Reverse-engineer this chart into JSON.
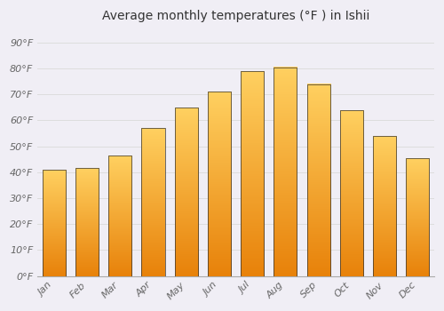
{
  "title": "Average monthly temperatures (°F ) in Ishii",
  "months": [
    "Jan",
    "Feb",
    "Mar",
    "Apr",
    "May",
    "Jun",
    "Jul",
    "Aug",
    "Sep",
    "Oct",
    "Nov",
    "Dec"
  ],
  "values": [
    41,
    41.5,
    46.5,
    57,
    65,
    71,
    79,
    80.5,
    74,
    64,
    54,
    45.5
  ],
  "bar_color_bottom": "#E8820A",
  "bar_color_top": "#FFD060",
  "bar_edge_color": "#333333",
  "background_color": "#F0EEF5",
  "plot_bg_color": "#F0EEF5",
  "grid_color": "#DDDDDD",
  "yticks": [
    0,
    10,
    20,
    30,
    40,
    50,
    60,
    70,
    80,
    90
  ],
  "ylim": [
    0,
    95
  ],
  "font_color": "#666666",
  "title_color": "#333333",
  "font_size_title": 10,
  "font_size_ticks": 8,
  "bar_width": 0.7
}
